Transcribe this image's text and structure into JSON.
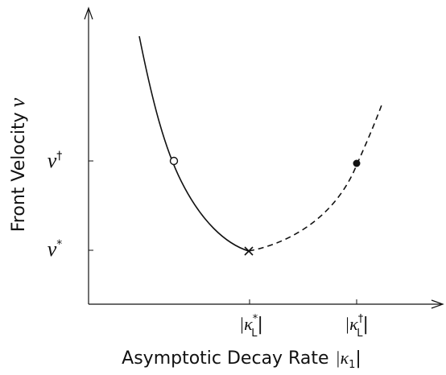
{
  "figure": {
    "y_label": {
      "text": "Front Velocity",
      "symbol": "v"
    },
    "x_label": {
      "text": "Asymptotic Decay Rate",
      "symbol": "|κ",
      "sub": "1",
      "close": "|"
    },
    "y_ticks": [
      {
        "symbol": "v",
        "sup": "†"
      },
      {
        "symbol": "v",
        "sup": "*"
      }
    ],
    "x_ticks": [
      {
        "symbol": "|κ",
        "sub": "L",
        "sup": "*",
        "close": "|"
      },
      {
        "symbol": "|κ",
        "sub": "L",
        "sup": "†",
        "close": "|"
      }
    ]
  }
}
